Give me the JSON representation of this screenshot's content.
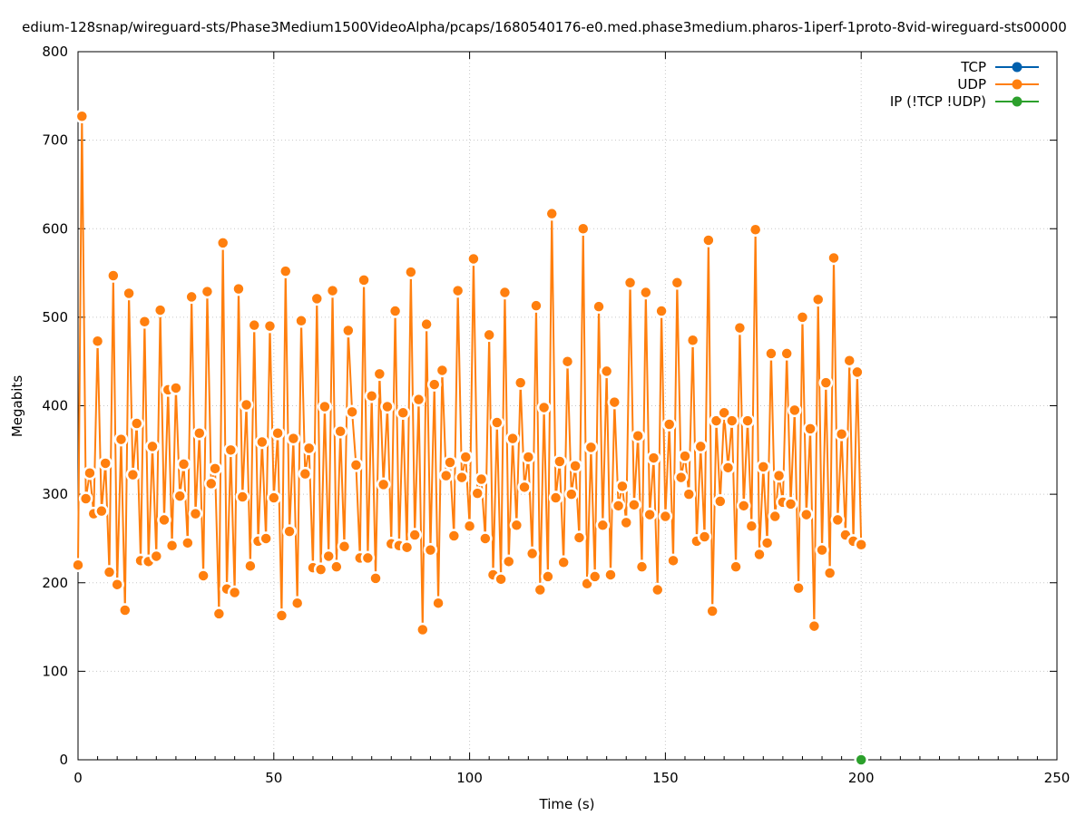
{
  "chart_data": {
    "type": "line",
    "title": "edium-128snap/wireguard-sts/Phase3Medium1500VideoAlpha/pcaps/1680540176-e0.med.phase3medium.pharos-1iperf-1proto-8vid-wireguard-sts00000",
    "xlabel": "Time (s)",
    "ylabel": "Megabits",
    "xlim": [
      0,
      250
    ],
    "ylim": [
      0,
      800
    ],
    "xticks": [
      0,
      50,
      100,
      150,
      200,
      250
    ],
    "yticks": [
      0,
      100,
      200,
      300,
      400,
      500,
      600,
      700,
      800
    ],
    "grid": true,
    "legend_position": "top-right",
    "series": [
      {
        "name": "TCP",
        "color": "#0060ad",
        "x": [],
        "y": []
      },
      {
        "name": "UDP",
        "color": "#ff7f0e",
        "x": [
          0,
          1,
          2,
          3,
          4,
          5,
          6,
          7,
          8,
          9,
          10,
          11,
          12,
          13,
          14,
          15,
          16,
          17,
          18,
          19,
          20,
          21,
          22,
          23,
          24,
          25,
          26,
          27,
          28,
          29,
          30,
          31,
          32,
          33,
          34,
          35,
          36,
          37,
          38,
          39,
          40,
          41,
          42,
          43,
          44,
          45,
          46,
          47,
          48,
          49,
          50,
          51,
          52,
          53,
          54,
          55,
          56,
          57,
          58,
          59,
          60,
          61,
          62,
          63,
          64,
          65,
          66,
          67,
          68,
          69,
          70,
          71,
          72,
          73,
          74,
          75,
          76,
          77,
          78,
          79,
          80,
          81,
          82,
          83,
          84,
          85,
          86,
          87,
          88,
          89,
          90,
          91,
          92,
          93,
          94,
          95,
          96,
          97,
          98,
          99,
          100,
          101,
          102,
          103,
          104,
          105,
          106,
          107,
          108,
          109,
          110,
          111,
          112,
          113,
          114,
          115,
          116,
          117,
          118,
          119,
          120,
          121,
          122,
          123,
          124,
          125,
          126,
          127,
          128,
          129,
          130,
          131,
          132,
          133,
          134,
          135,
          136,
          137,
          138,
          139,
          140,
          141,
          142,
          143,
          144,
          145,
          146,
          147,
          148,
          149,
          150,
          151,
          152,
          153,
          154,
          155,
          156,
          157,
          158,
          159,
          160,
          161,
          162,
          163,
          164,
          165,
          166,
          167,
          168,
          169,
          170,
          171,
          172,
          173,
          174,
          175,
          176,
          177,
          178,
          179,
          180,
          181,
          182,
          183,
          184,
          185,
          186,
          187,
          188,
          189,
          190,
          191,
          192,
          193,
          194,
          195,
          196,
          197,
          198,
          199,
          200
        ],
        "y": [
          220,
          727,
          295,
          324,
          278,
          473,
          281,
          335,
          212,
          547,
          198,
          362,
          169,
          527,
          322,
          380,
          225,
          495,
          224,
          354,
          230,
          508,
          271,
          418,
          242,
          420,
          298,
          334,
          245,
          523,
          278,
          369,
          208,
          529,
          312,
          329,
          165,
          584,
          193,
          350,
          189,
          532,
          297,
          401,
          219,
          491,
          247,
          359,
          250,
          490,
          296,
          369,
          163,
          552,
          258,
          363,
          177,
          496,
          323,
          352,
          217,
          521,
          215,
          399,
          230,
          530,
          218,
          371,
          241,
          485,
          393,
          333,
          228,
          542,
          228,
          411,
          205,
          436,
          311,
          399,
          244,
          507,
          242,
          392,
          240,
          551,
          254,
          407,
          147,
          492,
          237,
          424,
          177,
          440,
          321,
          336,
          253,
          530,
          319,
          342,
          264,
          566,
          301,
          317,
          250,
          480,
          209,
          381,
          204,
          528,
          224,
          363,
          265,
          426,
          308,
          342,
          233,
          513,
          192,
          398,
          207,
          617,
          296,
          337,
          223,
          450,
          300,
          332,
          251,
          600,
          199,
          353,
          207,
          512,
          265,
          439,
          209,
          404,
          287,
          309,
          268,
          539,
          288,
          366,
          218,
          528,
          277,
          341,
          192,
          507,
          275,
          379,
          225,
          539,
          319,
          343,
          300,
          474,
          247,
          354,
          252,
          587,
          168,
          383,
          292,
          392,
          330,
          383,
          218,
          488,
          287,
          383,
          264,
          599,
          232,
          331,
          245,
          459,
          275,
          321,
          291,
          459,
          289,
          395,
          194,
          500,
          277,
          374,
          151,
          520,
          237,
          426,
          211,
          567,
          271,
          368,
          254,
          451,
          247,
          438,
          243
        ]
      },
      {
        "name": "IP (!TCP  !UDP)",
        "color": "#2ca02c",
        "x": [
          200
        ],
        "y": [
          0
        ]
      }
    ]
  }
}
